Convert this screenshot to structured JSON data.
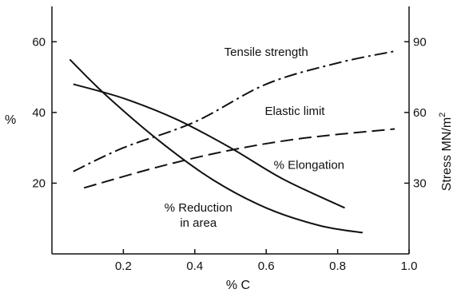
{
  "chart_data": {
    "type": "line",
    "xlabel": "% C",
    "ylabel_left": "%",
    "ylabel_right": "Stress MN/m",
    "ylabel_right_sup": "2",
    "xlim": [
      0,
      1.0
    ],
    "ylim_left": [
      0,
      70
    ],
    "ylim_right": [
      0,
      105
    ],
    "x_ticks": [
      {
        "value": 0.2,
        "label": "0.2"
      },
      {
        "value": 0.4,
        "label": "0.4"
      },
      {
        "value": 0.6,
        "label": "0.6"
      },
      {
        "value": 0.8,
        "label": "0.8"
      },
      {
        "value": 1.0,
        "label": "1.0"
      }
    ],
    "y_left_ticks": [
      {
        "value": 20,
        "label": "20"
      },
      {
        "value": 40,
        "label": "40"
      },
      {
        "value": 60,
        "label": "60"
      }
    ],
    "y_right_ticks": [
      {
        "value": 30,
        "label": "30"
      },
      {
        "value": 60,
        "label": "60"
      },
      {
        "value": 90,
        "label": "90"
      }
    ],
    "series": [
      {
        "name": "Tensile strength",
        "axis": "right",
        "style": "dashdot",
        "x": [
          0.06,
          0.2,
          0.4,
          0.6,
          0.8,
          0.96
        ],
        "y": [
          35,
          45,
          56,
          72,
          81,
          86
        ]
      },
      {
        "name": "Elastic limit",
        "axis": "right",
        "style": "dashed",
        "x": [
          0.09,
          0.3,
          0.5,
          0.7,
          0.96
        ],
        "y": [
          28,
          37,
          44,
          49,
          53
        ]
      },
      {
        "name": "% Elongation",
        "axis": "left",
        "style": "solid",
        "x": [
          0.06,
          0.2,
          0.35,
          0.5,
          0.65,
          0.82
        ],
        "y": [
          48,
          44,
          38,
          30,
          21,
          13
        ]
      },
      {
        "name": "% Reduction in area",
        "axis": "left",
        "style": "solid",
        "x": [
          0.05,
          0.15,
          0.3,
          0.45,
          0.6,
          0.75,
          0.87
        ],
        "y": [
          55,
          45,
          32,
          21,
          13,
          8,
          6
        ]
      }
    ],
    "annotations": [
      {
        "series": 0,
        "text": "Tensile strength",
        "anchor_x": 0.6,
        "anchor_y": 84,
        "axis": "right"
      },
      {
        "series": 1,
        "text": "Elastic limit",
        "anchor_x": 0.68,
        "anchor_y": 59,
        "axis": "right"
      },
      {
        "series": 2,
        "text": "% Elongation",
        "anchor_x": 0.72,
        "anchor_y": 24,
        "axis": "left"
      },
      {
        "series": 3,
        "text": "% Reduction",
        "text2": "in area",
        "anchor_x": 0.41,
        "anchor_y": 12,
        "axis": "left"
      }
    ]
  }
}
